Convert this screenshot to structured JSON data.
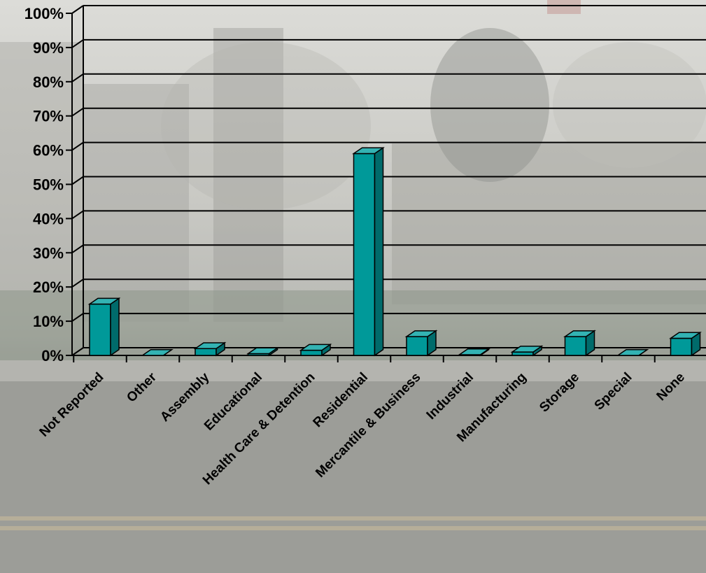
{
  "chart_data": {
    "type": "bar",
    "style": "3d-column",
    "categories": [
      "Not Reported",
      "Other",
      "Assembly",
      "Educational",
      "Health Care & Detention",
      "Residential",
      "Mercantile & Business",
      "Industrial",
      "Manufacturing",
      "Storage",
      "Special",
      "None"
    ],
    "values": [
      15,
      0,
      2,
      0.5,
      1.5,
      59,
      5.5,
      0.2,
      1,
      5.5,
      0,
      5
    ],
    "ylim": [
      0,
      100
    ],
    "yticks": [
      "0%",
      "10%",
      "20%",
      "30%",
      "40%",
      "50%",
      "60%",
      "70%",
      "80%",
      "90%",
      "100%"
    ],
    "grid": true,
    "legend": "none",
    "bar_color": "#009999",
    "bar_side_color": "#006b6b",
    "bar_top_color": "#33b3b3"
  }
}
